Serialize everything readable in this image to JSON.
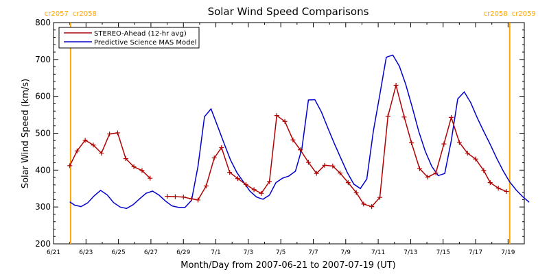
{
  "chart_data": {
    "type": "line",
    "title": "Solar Wind Speed Comparisons",
    "xlabel": "Month/Day from 2007-06-21 to 2007-07-19 (UT)",
    "ylabel": "Solar Wind Speed (km/s)",
    "xlim": [
      0,
      29
    ],
    "ylim": [
      200,
      800
    ],
    "x_tick_labels": [
      {
        "x": 0,
        "label": "6/21"
      },
      {
        "x": 2,
        "label": "6/23"
      },
      {
        "x": 4,
        "label": "6/25"
      },
      {
        "x": 6,
        "label": "6/27"
      },
      {
        "x": 8,
        "label": "6/29"
      },
      {
        "x": 10,
        "label": "7/1"
      },
      {
        "x": 12,
        "label": "7/3"
      },
      {
        "x": 14,
        "label": "7/5"
      },
      {
        "x": 16,
        "label": "7/7"
      },
      {
        "x": 18,
        "label": "7/9"
      },
      {
        "x": 20,
        "label": "7/11"
      },
      {
        "x": 22,
        "label": "7/13"
      },
      {
        "x": 24,
        "label": "7/15"
      },
      {
        "x": 26,
        "label": "7/17"
      },
      {
        "x": 28,
        "label": "7/19"
      }
    ],
    "y_ticks": [
      200,
      300,
      400,
      500,
      600,
      700,
      800
    ],
    "legend": {
      "placement": "top-left"
    },
    "carrington_markers": [
      {
        "x": 1.05,
        "label_left": "cr2057",
        "label_right": "cr2058",
        "color": "#ffa500"
      },
      {
        "x": 28.1,
        "label_left": "cr2058",
        "label_right": "cr2059",
        "color": "#ffa500"
      }
    ],
    "series": [
      {
        "name": "STEREO-Ahead (12-hr avg)",
        "color": "#b00000",
        "marker": "plus",
        "segments": [
          [
            [
              1.0,
              412
            ],
            [
              1.45,
              452
            ],
            [
              1.95,
              481
            ],
            [
              2.45,
              468
            ],
            [
              2.95,
              446
            ],
            [
              3.45,
              498
            ],
            [
              3.95,
              501
            ],
            [
              4.45,
              431
            ],
            [
              4.95,
              409
            ],
            [
              5.45,
              399
            ],
            [
              5.95,
              378
            ]
          ],
          [
            [
              7.0,
              329
            ],
            [
              7.5,
              328
            ],
            [
              8.0,
              327
            ],
            [
              8.5,
              322
            ],
            [
              8.9,
              319
            ],
            [
              9.4,
              357
            ],
            [
              9.9,
              433
            ],
            [
              10.35,
              461
            ],
            [
              10.85,
              394
            ],
            [
              11.35,
              377
            ],
            [
              11.85,
              361
            ],
            [
              12.35,
              347
            ],
            [
              12.8,
              337
            ],
            [
              13.3,
              369
            ],
            [
              13.75,
              548
            ],
            [
              14.25,
              532
            ],
            [
              14.75,
              482
            ],
            [
              15.2,
              455
            ],
            [
              15.7,
              421
            ],
            [
              16.2,
              391
            ],
            [
              16.7,
              413
            ],
            [
              17.2,
              411
            ],
            [
              17.65,
              392
            ],
            [
              18.15,
              366
            ],
            [
              18.65,
              339
            ],
            [
              19.1,
              308
            ],
            [
              19.6,
              301
            ],
            [
              20.1,
              326
            ],
            [
              20.6,
              546
            ],
            [
              21.1,
              630
            ],
            [
              21.6,
              544
            ],
            [
              22.05,
              474
            ],
            [
              22.55,
              404
            ],
            [
              23.05,
              381
            ],
            [
              23.55,
              392
            ],
            [
              24.05,
              471
            ],
            [
              24.5,
              543
            ],
            [
              25.0,
              475
            ],
            [
              25.5,
              446
            ],
            [
              26.0,
              430
            ],
            [
              26.5,
              399
            ],
            [
              26.9,
              366
            ],
            [
              27.4,
              351
            ],
            [
              27.9,
              342
            ]
          ]
        ]
      },
      {
        "name": "Predictive Science MAS Model",
        "color": "#0000cc",
        "marker": "none",
        "segments": [
          [
            [
              1.0,
              314
            ],
            [
              1.3,
              305
            ],
            [
              1.7,
              301
            ],
            [
              2.1,
              311
            ],
            [
              2.5,
              330
            ],
            [
              2.9,
              345
            ],
            [
              3.3,
              333
            ],
            [
              3.7,
              312
            ],
            [
              4.1,
              300
            ],
            [
              4.5,
              296
            ],
            [
              4.9,
              306
            ],
            [
              5.3,
              322
            ],
            [
              5.7,
              337
            ],
            [
              6.1,
              343
            ],
            [
              6.5,
              332
            ],
            [
              6.9,
              316
            ],
            [
              7.3,
              303
            ],
            [
              7.7,
              299
            ],
            [
              8.1,
              299
            ],
            [
              8.5,
              318
            ],
            [
              8.9,
              410
            ],
            [
              9.3,
              545
            ],
            [
              9.7,
              566
            ],
            [
              10.1,
              520
            ],
            [
              10.5,
              473
            ],
            [
              10.9,
              428
            ],
            [
              11.3,
              393
            ],
            [
              11.7,
              368
            ],
            [
              12.1,
              343
            ],
            [
              12.5,
              327
            ],
            [
              12.9,
              321
            ],
            [
              13.3,
              332
            ],
            [
              13.7,
              366
            ],
            [
              14.1,
              378
            ],
            [
              14.5,
              384
            ],
            [
              14.9,
              397
            ],
            [
              15.3,
              458
            ],
            [
              15.7,
              590
            ],
            [
              16.1,
              591
            ],
            [
              16.5,
              558
            ],
            [
              16.9,
              514
            ],
            [
              17.3,
              472
            ],
            [
              17.7,
              432
            ],
            [
              18.1,
              393
            ],
            [
              18.5,
              362
            ],
            [
              18.9,
              350
            ],
            [
              19.3,
              376
            ],
            [
              19.7,
              505
            ],
            [
              20.1,
              605
            ],
            [
              20.5,
              706
            ],
            [
              20.9,
              712
            ],
            [
              21.3,
              682
            ],
            [
              21.7,
              632
            ],
            [
              22.1,
              570
            ],
            [
              22.5,
              505
            ],
            [
              22.9,
              451
            ],
            [
              23.3,
              410
            ],
            [
              23.7,
              385
            ],
            [
              24.1,
              391
            ],
            [
              24.5,
              480
            ],
            [
              24.9,
              593
            ],
            [
              25.3,
              612
            ],
            [
              25.7,
              583
            ],
            [
              26.1,
              542
            ],
            [
              26.5,
              505
            ],
            [
              26.9,
              470
            ],
            [
              27.3,
              432
            ],
            [
              27.7,
              398
            ],
            [
              28.1,
              368
            ],
            [
              28.5,
              346
            ],
            [
              28.9,
              328
            ],
            [
              29.3,
              313
            ]
          ]
        ]
      }
    ]
  }
}
